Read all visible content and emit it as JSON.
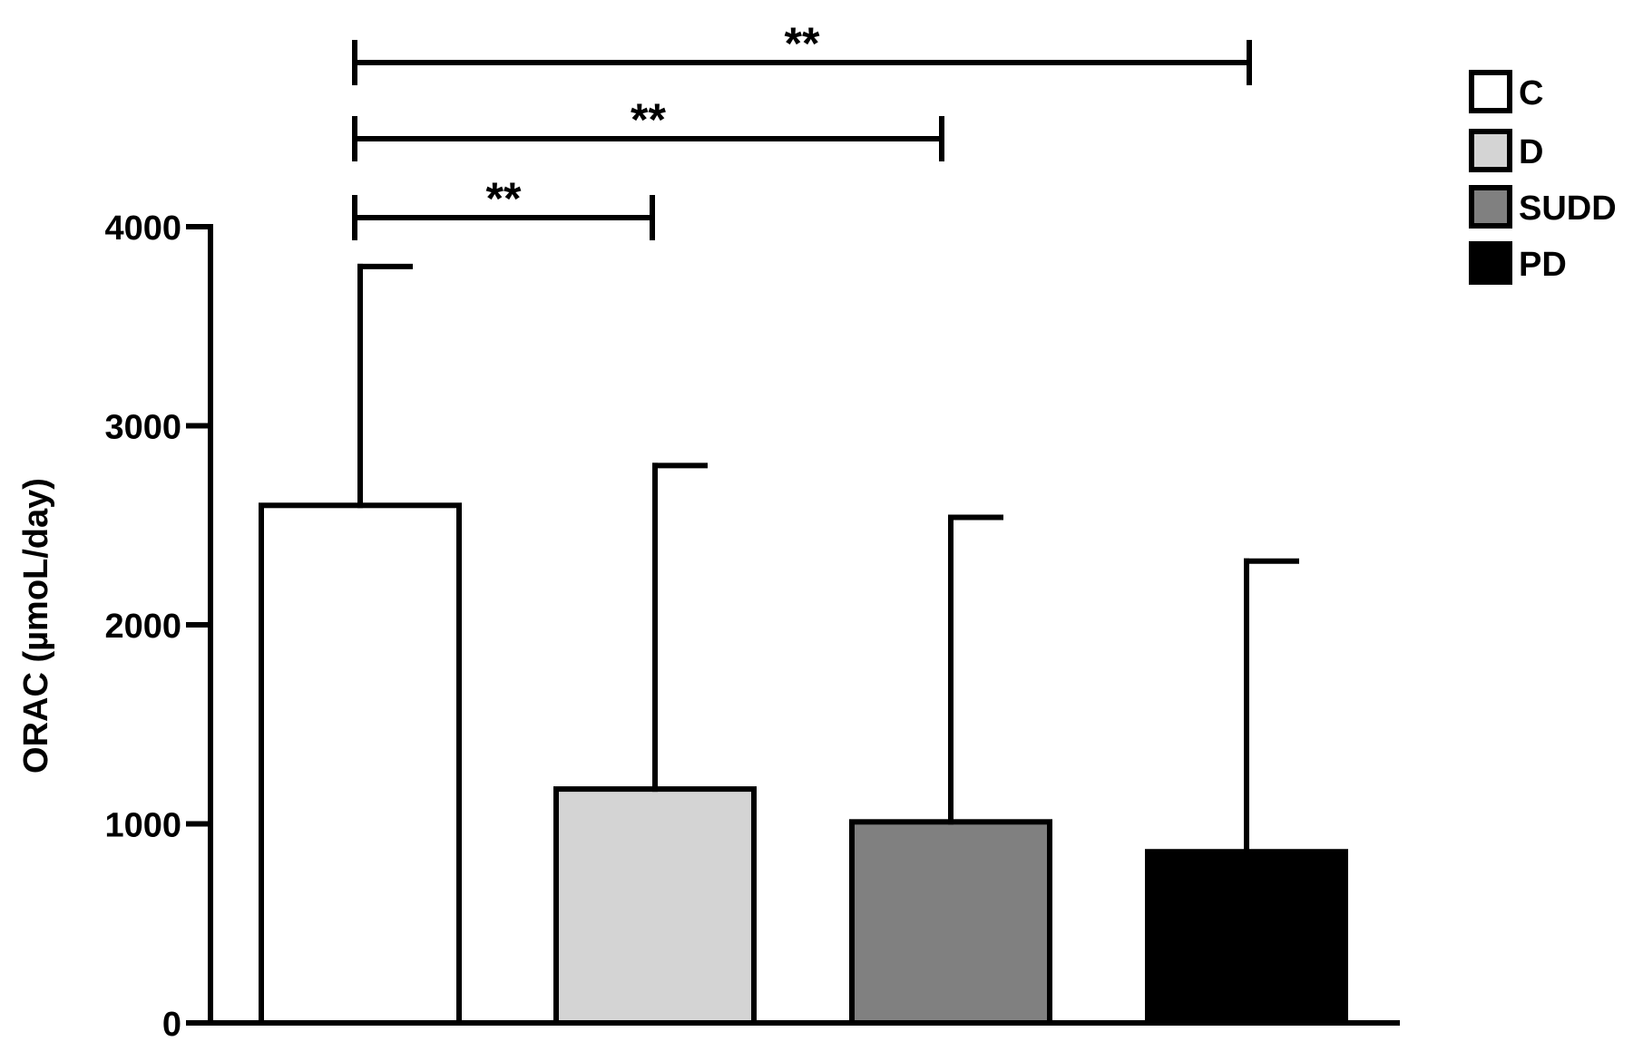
{
  "chart_data": {
    "type": "bar",
    "categories": [
      "C",
      "D",
      "SUDD",
      "PD"
    ],
    "series": [
      {
        "values": [
          2600,
          1175,
          1010,
          860
        ],
        "error_upper": [
          3800,
          2800,
          2540,
          2320
        ],
        "colors": [
          "#ffffff",
          "#d4d4d4",
          "#808080",
          "#000000"
        ]
      }
    ],
    "title": "",
    "xlabel": "",
    "ylabel": "ORAC (µmoL/day)",
    "ylim": [
      0,
      4000
    ],
    "yticks": [
      0,
      1000,
      2000,
      3000,
      4000
    ],
    "ytick_labels": [
      "0",
      "1000",
      "2000",
      "3000",
      "4000"
    ],
    "grid": false,
    "legend_position": "top-right",
    "legend": [
      {
        "label": "C",
        "color": "#ffffff"
      },
      {
        "label": "D",
        "color": "#d4d4d4"
      },
      {
        "label": "SUDD",
        "color": "#808080"
      },
      {
        "label": "PD",
        "color": "#000000"
      }
    ],
    "significance": [
      {
        "from": "C",
        "to": "D",
        "label": "**"
      },
      {
        "from": "C",
        "to": "SUDD",
        "label": "**"
      },
      {
        "from": "C",
        "to": "PD",
        "label": "**"
      }
    ]
  }
}
